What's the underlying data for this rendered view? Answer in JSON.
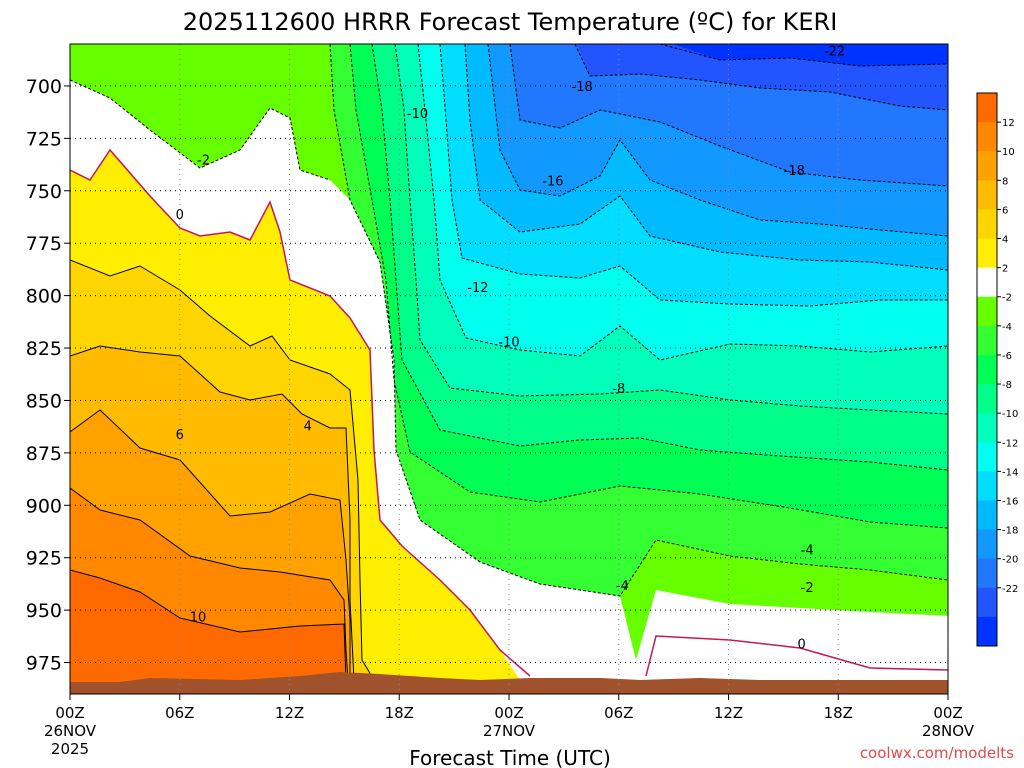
{
  "chart_data": {
    "type": "heatmap",
    "title": "2025112600 HRRR Forecast Temperature (ºC) for KERI",
    "xlabel": "Forecast Time (UTC)",
    "ylabel": "",
    "credit": "coolwx.com/modelts",
    "x_ticks": [
      {
        "hours": 0,
        "label": "00Z",
        "sub1": "26NOV",
        "sub2": "2025"
      },
      {
        "hours": 6,
        "label": "06Z"
      },
      {
        "hours": 12,
        "label": "12Z"
      },
      {
        "hours": 18,
        "label": "18Z"
      },
      {
        "hours": 24,
        "label": "00Z",
        "sub1": "27NOV"
      },
      {
        "hours": 30,
        "label": "06Z"
      },
      {
        "hours": 36,
        "label": "12Z"
      },
      {
        "hours": 42,
        "label": "18Z"
      },
      {
        "hours": 48,
        "label": "00Z",
        "sub1": "28NOV"
      }
    ],
    "y_ticks": [
      "700",
      "725",
      "750",
      "775",
      "800",
      "825",
      "850",
      "875",
      "900",
      "925",
      "950",
      "975"
    ],
    "y_tick_values": [
      700,
      725,
      750,
      775,
      800,
      825,
      850,
      875,
      900,
      925,
      950,
      975
    ],
    "xlim_hours": [
      0,
      48
    ],
    "ylim_hpa": [
      680,
      990
    ],
    "grid": true,
    "legend": "right",
    "colorbar": {
      "labels": [
        "12",
        "10",
        "8",
        "6",
        "4",
        "2",
        "-2",
        "-4",
        "-6",
        "-8",
        "-10",
        "-12",
        "-14",
        "-16",
        "-18",
        "-20",
        "-22"
      ],
      "label_values": [
        12,
        10,
        8,
        6,
        4,
        2,
        -2,
        -4,
        -6,
        -8,
        -10,
        -12,
        -14,
        -16,
        -18,
        -20,
        -22
      ],
      "band_colors": [
        "#ff6a00",
        "#ff8800",
        "#ffa200",
        "#ffbb00",
        "#ffd500",
        "#ffee00",
        "#ffffff",
        "#66ff00",
        "#33ff33",
        "#00ff55",
        "#00ff88",
        "#00ffbb",
        "#00ffee",
        "#00ddff",
        "#00bbff",
        "#1199ff",
        "#2277ff",
        "#2255ff",
        "#0033ff"
      ]
    },
    "contour_labels": [
      {
        "text": "-22",
        "hours": 41.8,
        "hpa": 683
      },
      {
        "text": "-18",
        "hours": 28.0,
        "hpa": 700
      },
      {
        "text": "-10",
        "hours": 19.0,
        "hpa": 713
      },
      {
        "text": "-2",
        "hours": 7.3,
        "hpa": 735
      },
      {
        "text": "-16",
        "hours": 26.4,
        "hpa": 745
      },
      {
        "text": "-18",
        "hours": 39.6,
        "hpa": 740
      },
      {
        "text": "0",
        "hours": 6.0,
        "hpa": 761
      },
      {
        "text": "-12",
        "hours": 22.3,
        "hpa": 796
      },
      {
        "text": "-10",
        "hours": 24.0,
        "hpa": 822
      },
      {
        "text": "-8",
        "hours": 30.0,
        "hpa": 844
      },
      {
        "text": "4",
        "hours": 13.0,
        "hpa": 862
      },
      {
        "text": "6",
        "hours": 6.0,
        "hpa": 866
      },
      {
        "text": "-4",
        "hours": 40.3,
        "hpa": 921
      },
      {
        "text": "-4",
        "hours": 30.2,
        "hpa": 938
      },
      {
        "text": "-2",
        "hours": 40.3,
        "hpa": 939
      },
      {
        "text": "10",
        "hours": 7.0,
        "hpa": 953
      },
      {
        "text": "0",
        "hours": 40.0,
        "hpa": 966
      }
    ]
  }
}
